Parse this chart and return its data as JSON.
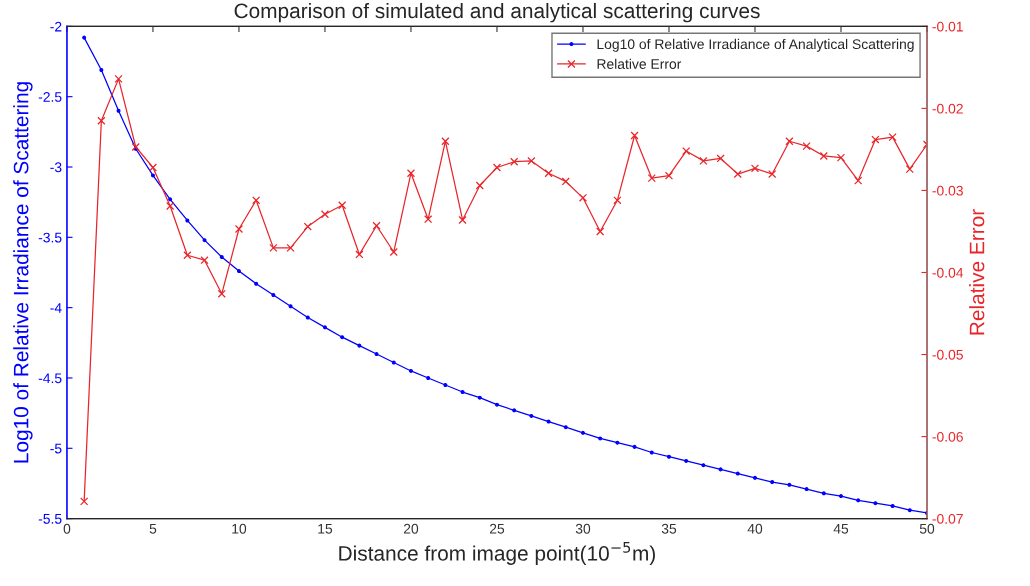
{
  "chart_data": {
    "type": "line",
    "title": "Comparison of simulated and analytical scattering curves",
    "xlabel": "Distance from image point(10$^{−5}$m)",
    "ylabel": "Log10 of Relative Irradiance of Scattering",
    "y2label": "Relative Error",
    "x": [
      1,
      2,
      3,
      4,
      5,
      6,
      7,
      8,
      9,
      10,
      11,
      12,
      13,
      14,
      15,
      16,
      17,
      18,
      19,
      20,
      21,
      22,
      23,
      24,
      25,
      26,
      27,
      28,
      29,
      30,
      31,
      32,
      33,
      34,
      35,
      36,
      37,
      38,
      39,
      40,
      41,
      42,
      43,
      44,
      45,
      46,
      47,
      48,
      49,
      50
    ],
    "series": [
      {
        "name": "Log10 of Relative Irradiance of Analytical Scattering",
        "color": "#0000ff",
        "marker": "circle",
        "values": [
          -2.08,
          -2.31,
          -2.6,
          -2.87,
          -3.06,
          -3.23,
          -3.38,
          -3.52,
          -3.64,
          -3.74,
          -3.83,
          -3.91,
          -3.99,
          -4.07,
          -4.14,
          -4.21,
          -4.27,
          -4.33,
          -4.39,
          -4.45,
          -4.5,
          -4.55,
          -4.6,
          -4.64,
          -4.69,
          -4.73,
          -4.77,
          -4.81,
          -4.85,
          -4.89,
          -4.93,
          -4.96,
          -4.99,
          -5.03,
          -5.06,
          -5.09,
          -5.12,
          -5.15,
          -5.18,
          -5.21,
          -5.24,
          -5.26,
          -5.29,
          -5.32,
          -5.34,
          -5.37,
          -5.39,
          -5.41,
          -5.44,
          -5.46
        ]
      },
      {
        "name": "Relative Error",
        "color": "#e8262a",
        "marker": "cross",
        "axis": "y2",
        "values": [
          -0.0679,
          -0.0215,
          -0.0164,
          -0.0247,
          -0.0272,
          -0.0319,
          -0.0379,
          -0.0385,
          -0.0426,
          -0.0347,
          -0.0312,
          -0.037,
          -0.037,
          -0.0344,
          -0.0329,
          -0.0318,
          -0.0378,
          -0.0343,
          -0.0375,
          -0.0279,
          -0.0335,
          -0.024,
          -0.0336,
          -0.0294,
          -0.0272,
          -0.0265,
          -0.0264,
          -0.0279,
          -0.0289,
          -0.0309,
          -0.035,
          -0.0312,
          -0.0233,
          -0.0285,
          -0.0282,
          -0.0252,
          -0.0264,
          -0.0261,
          -0.028,
          -0.0273,
          -0.028,
          -0.024,
          -0.0246,
          -0.0258,
          -0.026,
          -0.0288,
          -0.0238,
          -0.0235,
          -0.0274,
          -0.0244
        ]
      }
    ],
    "xlim": [
      0,
      50
    ],
    "xticks": [
      0,
      5,
      10,
      15,
      20,
      25,
      30,
      35,
      40,
      45,
      50
    ],
    "ylim": [
      -5.5,
      -2
    ],
    "yticks": [
      -5.5,
      -5,
      -4.5,
      -4,
      -3.5,
      -3,
      -2.5,
      -2
    ],
    "y2lim": [
      -0.07,
      -0.01
    ],
    "y2ticks": [
      -0.07,
      -0.06,
      -0.05,
      -0.04,
      -0.03,
      -0.02,
      -0.01
    ],
    "legend": "top right",
    "grid": false
  }
}
